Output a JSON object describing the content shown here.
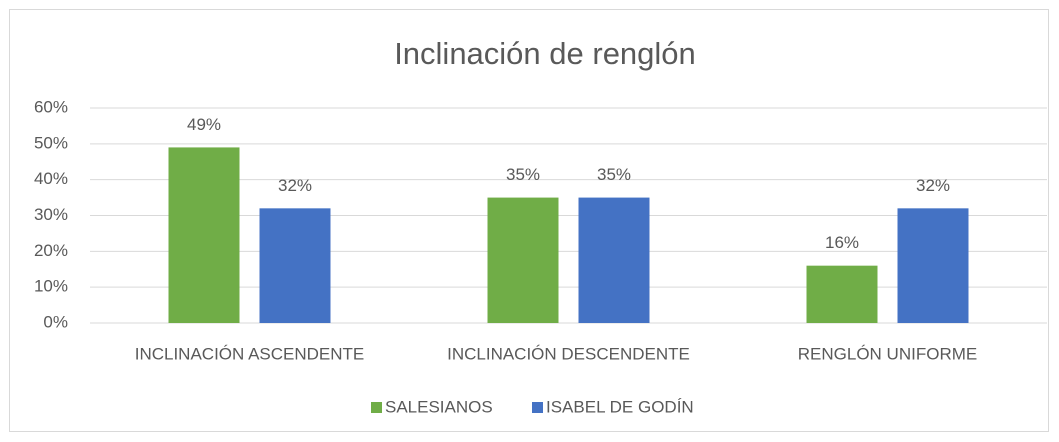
{
  "chart_data": {
    "type": "bar",
    "title": "Inclinación de renglón",
    "categories": [
      "INCLINACIÓN ASCENDENTE",
      "INCLINACIÓN DESCENDENTE",
      "RENGLÓN UNIFORME"
    ],
    "series": [
      {
        "name": "SALESIANOS",
        "color": "#70ad47",
        "values": [
          49,
          35,
          16
        ],
        "value_labels": [
          "49%",
          "35%",
          "16%"
        ]
      },
      {
        "name": "ISABEL DE GODÍN",
        "color": "#4472c4",
        "values": [
          32,
          35,
          32
        ],
        "value_labels": [
          "32%",
          "35%",
          "32%"
        ]
      }
    ],
    "ylim": [
      0,
      60
    ],
    "yticks": [
      {
        "value": 0,
        "label": "0%"
      },
      {
        "value": 10,
        "label": "10%"
      },
      {
        "value": 20,
        "label": "20%"
      },
      {
        "value": 30,
        "label": "30%"
      },
      {
        "value": 40,
        "label": "40%"
      },
      {
        "value": 50,
        "label": "50%"
      },
      {
        "value": 60,
        "label": "60%"
      }
    ],
    "grid": true,
    "legend": "bottom"
  }
}
